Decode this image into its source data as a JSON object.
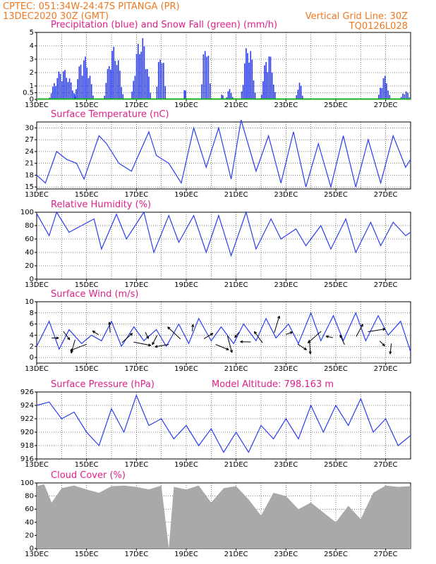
{
  "header": {
    "line1": "CPTEC:   051:34W-24:47S   PITANGA (PR)",
    "line2": "13DEC2020 30Z (GMT)",
    "grid_note": "Vertical Grid Line: 30Z",
    "code": "TQ0126L028"
  },
  "colors": {
    "header": "#f07820",
    "title": "#e0208a",
    "line": "#2a3df0",
    "bar": "#2a3df0",
    "snow": "#18b020",
    "cloud": "#a9a9a9"
  },
  "chart_data": [
    {
      "type": "bar",
      "title": "Precipitation (blue) and Snow Fall (green) (mm/h)",
      "x_ticks": [
        "13DEC",
        "15DEC",
        "17DEC",
        "19DEC",
        "21DEC",
        "23DEC",
        "25DEC",
        "27DEC"
      ],
      "ylim": [
        0,
        5
      ],
      "y_ticks": [
        "0",
        "0.5",
        "1",
        "2",
        "3",
        "4",
        "5"
      ],
      "x_range_days": [
        0,
        15
      ],
      "series": [
        {
          "name": "Precipitation",
          "bursts": [
            [
              0.5,
              1.6,
              2.3
            ],
            [
              1.5,
              2.3,
              3.3
            ],
            [
              2.7,
              3.5,
              4.0
            ],
            [
              3.8,
              4.6,
              4.8
            ],
            [
              4.8,
              5.2,
              4.0
            ],
            [
              5.9,
              6.0,
              1.3
            ],
            [
              6.6,
              7.0,
              4.8
            ],
            [
              7.4,
              7.5,
              0.5
            ],
            [
              7.6,
              7.9,
              0.8
            ],
            [
              8.2,
              8.8,
              4.3
            ],
            [
              9.0,
              9.6,
              3.6
            ],
            [
              10.4,
              10.7,
              1.3
            ],
            [
              13.7,
              14.2,
              1.8
            ],
            [
              14.6,
              15.0,
              0.7
            ]
          ]
        },
        {
          "name": "Snow Fall",
          "values": "0 throughout"
        }
      ]
    },
    {
      "type": "line",
      "title": "Surface Temperature (nC)",
      "x_ticks": [
        "13DEC",
        "15DEC",
        "17DEC",
        "19DEC",
        "21DEC",
        "23DEC",
        "25DEC",
        "27DEC"
      ],
      "ylim": [
        14.5,
        31.5
      ],
      "y_ticks": [
        "15",
        "18",
        "21",
        "24",
        "27",
        "30"
      ],
      "series": [
        {
          "name": "Temperature",
          "x": [
            0,
            0.35,
            0.8,
            1.2,
            1.6,
            1.9,
            2.5,
            2.8,
            3.3,
            3.8,
            4.5,
            4.8,
            5.3,
            5.8,
            6.3,
            6.8,
            7.3,
            7.8,
            8.2,
            8.8,
            9.3,
            9.8,
            10.3,
            10.8,
            11.3,
            11.8,
            12.3,
            12.8,
            13.3,
            13.8,
            14.3,
            14.8,
            15
          ],
          "y": [
            18,
            16,
            24,
            22,
            21,
            17,
            28,
            26,
            21,
            19,
            29,
            23,
            21,
            16,
            30,
            20,
            30,
            17,
            32,
            19,
            28,
            16,
            29,
            15,
            26,
            15,
            28,
            15,
            27,
            16,
            28,
            20,
            22
          ]
        }
      ]
    },
    {
      "type": "line",
      "title": "Relative Humidity (%)",
      "x_ticks": [
        "13DEC",
        "15DEC",
        "17DEC",
        "19DEC",
        "21DEC",
        "23DEC",
        "25DEC",
        "27DEC"
      ],
      "ylim": [
        0,
        100
      ],
      "y_ticks": [
        "0",
        "20",
        "40",
        "60",
        "80",
        "100"
      ],
      "series": [
        {
          "name": "Humidity",
          "x": [
            0,
            0.5,
            0.8,
            1.3,
            1.8,
            2.3,
            2.6,
            3.2,
            3.6,
            4.3,
            4.7,
            5.3,
            5.7,
            6.3,
            6.8,
            7.3,
            7.8,
            8.4,
            8.8,
            9.4,
            9.8,
            10.4,
            10.8,
            11.4,
            11.8,
            12.4,
            12.8,
            13.4,
            13.8,
            14.3,
            14.8,
            15
          ],
          "y": [
            98,
            65,
            100,
            70,
            80,
            90,
            45,
            97,
            60,
            100,
            40,
            95,
            55,
            95,
            40,
            95,
            35,
            100,
            45,
            90,
            60,
            75,
            50,
            80,
            45,
            90,
            40,
            85,
            50,
            85,
            65,
            70
          ]
        }
      ]
    },
    {
      "type": "line",
      "title": "Surface Wind (m/s)",
      "x_ticks": [
        "13DEC",
        "15DEC",
        "17DEC",
        "19DEC",
        "21DEC",
        "23DEC",
        "25DEC",
        "27DEC"
      ],
      "ylim": [
        -1,
        10
      ],
      "y_ticks": [
        "0",
        "2",
        "4",
        "6",
        "8",
        "10"
      ],
      "series": [
        {
          "name": "Wind speed",
          "x": [
            0,
            0.5,
            0.9,
            1.3,
            1.8,
            2.2,
            2.6,
            3.0,
            3.4,
            3.9,
            4.3,
            4.8,
            5.2,
            5.7,
            6.1,
            6.5,
            7.0,
            7.4,
            7.9,
            8.3,
            8.8,
            9.2,
            9.6,
            10.1,
            10.5,
            11.0,
            11.4,
            11.9,
            12.3,
            12.8,
            13.2,
            13.7,
            14.1,
            14.6,
            15
          ],
          "y": [
            2,
            6.5,
            1.5,
            5,
            2.5,
            4,
            3,
            6.5,
            2,
            5.5,
            3,
            5,
            2,
            6,
            2.5,
            7,
            3,
            5.5,
            2.5,
            6,
            3,
            7,
            3.5,
            6,
            2.5,
            8,
            3,
            7.5,
            3,
            8,
            3,
            7.5,
            4,
            6.5,
            1
          ]
        }
      ],
      "wind_vectors": 30
    },
    {
      "type": "line",
      "title": "Surface Pressure (hPa)",
      "annotation": "Model Altitude: 798.163 m",
      "x_ticks": [
        "13DEC",
        "15DEC",
        "17DEC",
        "19DEC",
        "21DEC",
        "23DEC",
        "25DEC",
        "27DEC"
      ],
      "ylim": [
        916,
        926
      ],
      "y_ticks": [
        "916",
        "918",
        "920",
        "922",
        "924",
        "926"
      ],
      "series": [
        {
          "name": "Pressure",
          "x": [
            0,
            0.5,
            1.0,
            1.5,
            2.0,
            2.5,
            3.0,
            3.5,
            4.0,
            4.5,
            5.0,
            5.5,
            6.0,
            6.5,
            7.0,
            7.5,
            8.0,
            8.5,
            9.0,
            9.5,
            10.0,
            10.5,
            11.0,
            11.5,
            12.0,
            12.5,
            13.0,
            13.5,
            14.0,
            14.5,
            15
          ],
          "y": [
            924,
            924.5,
            922,
            923,
            920,
            918,
            923.5,
            920,
            925.5,
            921,
            922,
            919,
            921,
            918,
            920.5,
            917,
            920,
            917,
            921,
            919,
            922,
            919,
            924,
            920,
            924,
            921,
            925,
            920,
            922,
            918,
            919.5
          ]
        }
      ]
    },
    {
      "type": "area",
      "title": "Cloud Cover (%)",
      "x_ticks": [
        "13DEC",
        "15DEC",
        "17DEC",
        "19DEC",
        "21DEC",
        "23DEC",
        "25DEC",
        "27DEC"
      ],
      "ylim": [
        0,
        100
      ],
      "y_ticks": [
        "0",
        "20",
        "40",
        "60",
        "80",
        "100"
      ],
      "series": [
        {
          "name": "Cloud cover",
          "x": [
            0,
            0.3,
            0.6,
            1.0,
            1.5,
            2.0,
            2.5,
            3.0,
            3.5,
            4.0,
            4.5,
            5.0,
            5.3,
            5.5,
            6.0,
            6.5,
            7.0,
            7.5,
            8.0,
            8.5,
            9.0,
            9.5,
            10.0,
            10.5,
            11.0,
            11.5,
            12.0,
            12.5,
            13.0,
            13.5,
            14.0,
            14.5,
            15
          ],
          "y": [
            95,
            98,
            70,
            92,
            96,
            90,
            85,
            95,
            96,
            94,
            90,
            96,
            0,
            94,
            90,
            96,
            70,
            92,
            95,
            75,
            50,
            85,
            80,
            60,
            70,
            55,
            40,
            65,
            45,
            85,
            96,
            94,
            95
          ]
        }
      ]
    }
  ]
}
